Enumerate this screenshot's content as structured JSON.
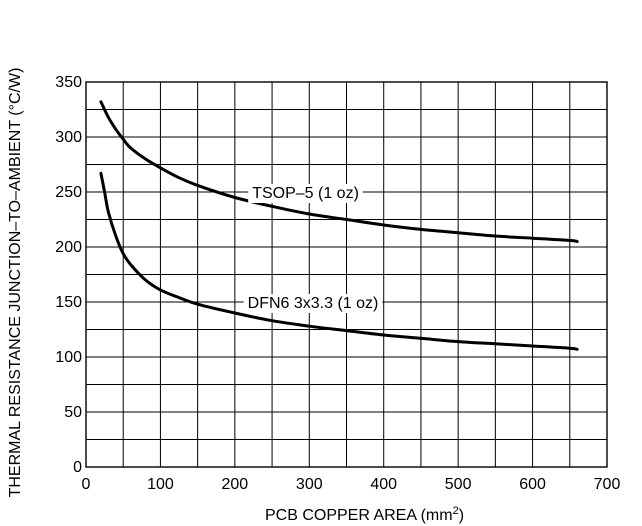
{
  "chart_data": {
    "type": "line",
    "xlabel": "PCB COPPER AREA (mm",
    "xlabel_sup": "2",
    "xlabel_end": ")",
    "ylabel": "THERMAL RESISTANCE JUNCTION–TO–AMBIENT (°C/W)",
    "xlim": [
      0,
      700
    ],
    "ylim": [
      0,
      350
    ],
    "x_ticks": [
      "0",
      "100",
      "200",
      "300",
      "400",
      "500",
      "600",
      "700"
    ],
    "y_ticks": [
      "0",
      "50",
      "100",
      "150",
      "200",
      "250",
      "300",
      "350"
    ],
    "grid": true,
    "series": [
      {
        "name": "TSOP–5 (1 oz)",
        "x": [
          20,
          30,
          40,
          50,
          60,
          80,
          100,
          125,
          150,
          200,
          250,
          300,
          350,
          400,
          450,
          500,
          550,
          600,
          650,
          660
        ],
        "y": [
          332,
          318,
          307,
          298,
          290,
          280,
          272,
          263,
          256,
          245,
          237,
          230,
          225,
          220,
          216,
          213,
          210,
          208,
          206,
          205
        ]
      },
      {
        "name": "DFN6 3x3.3 (1 oz)",
        "x": [
          20,
          25,
          30,
          40,
          50,
          60,
          80,
          100,
          125,
          150,
          200,
          250,
          300,
          350,
          400,
          450,
          500,
          550,
          600,
          650,
          660
        ],
        "y": [
          267,
          250,
          232,
          210,
          194,
          184,
          170,
          161,
          154,
          148,
          140,
          133,
          128,
          124,
          120,
          117,
          114,
          112,
          110,
          108,
          107
        ]
      }
    ]
  }
}
